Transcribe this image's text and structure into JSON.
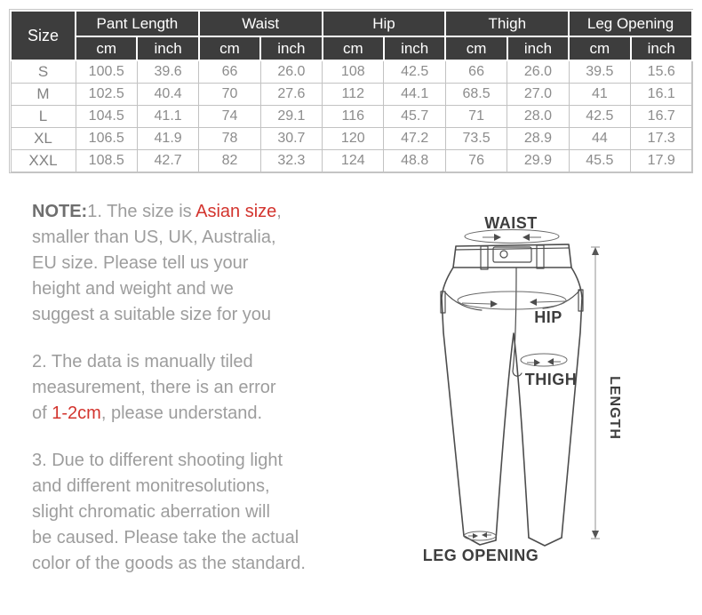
{
  "size_chart": {
    "corner_label": "Size",
    "groups": [
      {
        "label": "Pant Length"
      },
      {
        "label": "Waist"
      },
      {
        "label": "Hip"
      },
      {
        "label": "Thigh"
      },
      {
        "label": "Leg Opening"
      }
    ],
    "unit_labels": [
      "cm",
      "inch"
    ],
    "rows": [
      {
        "size": "S",
        "values": [
          "100.5",
          "39.6",
          "66",
          "26.0",
          "108",
          "42.5",
          "66",
          "26.0",
          "39.5",
          "15.6"
        ]
      },
      {
        "size": "M",
        "values": [
          "102.5",
          "40.4",
          "70",
          "27.6",
          "112",
          "44.1",
          "68.5",
          "27.0",
          "41",
          "16.1"
        ]
      },
      {
        "size": "L",
        "values": [
          "104.5",
          "41.1",
          "74",
          "29.1",
          "116",
          "45.7",
          "71",
          "28.0",
          "42.5",
          "16.7"
        ]
      },
      {
        "size": "XL",
        "values": [
          "106.5",
          "41.9",
          "78",
          "30.7",
          "120",
          "47.2",
          "73.5",
          "28.9",
          "44",
          "17.3"
        ]
      },
      {
        "size": "XXL",
        "values": [
          "108.5",
          "42.7",
          "82",
          "32.3",
          "124",
          "48.8",
          "76",
          "29.9",
          "45.5",
          "17.9"
        ]
      }
    ]
  },
  "notes": {
    "n1": {
      "bold": "NOTE:",
      "l1_mid": "1. The size is ",
      "l1_red": "Asian size",
      "l1_end": ",",
      "l2": "smaller than US, UK, Australia,",
      "l3": "EU size. Please tell us your",
      "l4": "height and weight and we",
      "l5": "suggest a suitable size for you"
    },
    "n2": {
      "l1": "2. The data is manually tiled",
      "l2": "measurement, there is an error",
      "l3_pre": "of ",
      "l3_red": "1-2cm",
      "l3_end": ", please understand."
    },
    "n3": {
      "l1": "3. Due to different shooting light",
      "l2": "and different monitresolutions,",
      "l3": "slight chromatic aberration will",
      "l4": "be caused. Please take the actual",
      "l5": "color of the goods as the standard."
    }
  },
  "diagram": {
    "labels": {
      "waist": "WAIST",
      "hip": "HIP",
      "thigh": "THIGH",
      "length": "LENGTH",
      "leg_opening": "LEG OPENING"
    }
  },
  "colors": {
    "header_bg": "#3d3d3d",
    "header_text": "#ffffff",
    "cell_text": "#8c8c8c",
    "table_border": "#c2c2c2",
    "note_text": "#9d9d9d",
    "note_bold": "#6e6e6e",
    "accent_red": "#d3342e",
    "diagram_line": "#4d4d4d",
    "diagram_label": "#3e3e3e"
  }
}
